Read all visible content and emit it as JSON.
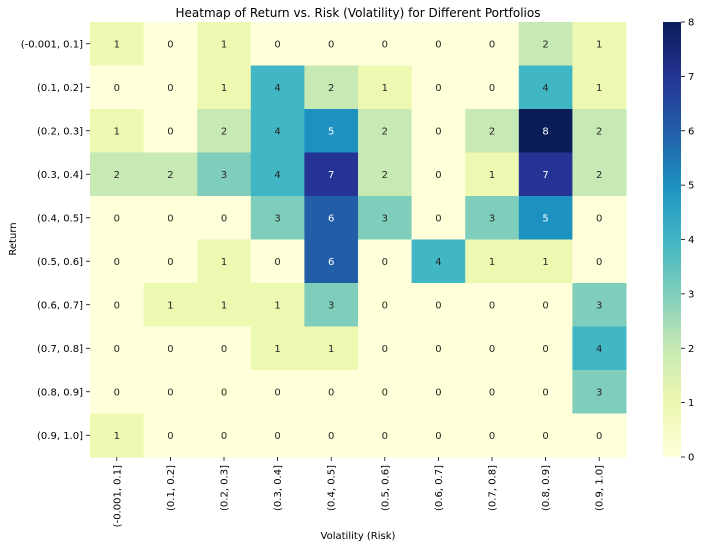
{
  "chart_data": {
    "type": "heatmap",
    "title": "Heatmap of Return vs. Risk (Volatility) for Different Portfolios",
    "xlabel": "Volatility (Risk)",
    "ylabel": "Return",
    "x_categories": [
      "(-0.001, 0.1]",
      "(0.1, 0.2]",
      "(0.2, 0.3]",
      "(0.3, 0.4]",
      "(0.4, 0.5]",
      "(0.5, 0.6]",
      "(0.6, 0.7]",
      "(0.7, 0.8]",
      "(0.8, 0.9]",
      "(0.9, 1.0]"
    ],
    "y_categories": [
      "(-0.001, 0.1]",
      "(0.1, 0.2]",
      "(0.2, 0.3]",
      "(0.3, 0.4]",
      "(0.4, 0.5]",
      "(0.5, 0.6]",
      "(0.6, 0.7]",
      "(0.7, 0.8]",
      "(0.8, 0.9]",
      "(0.9, 1.0]"
    ],
    "values": [
      [
        1,
        0,
        1,
        0,
        0,
        0,
        0,
        0,
        2,
        1
      ],
      [
        0,
        0,
        1,
        4,
        2,
        1,
        0,
        0,
        4,
        1
      ],
      [
        1,
        0,
        2,
        4,
        5,
        2,
        0,
        2,
        8,
        2
      ],
      [
        2,
        2,
        3,
        4,
        7,
        2,
        0,
        1,
        7,
        2
      ],
      [
        0,
        0,
        0,
        3,
        6,
        3,
        0,
        3,
        5,
        0
      ],
      [
        0,
        0,
        1,
        0,
        6,
        0,
        4,
        1,
        1,
        0
      ],
      [
        0,
        1,
        1,
        1,
        3,
        0,
        0,
        0,
        0,
        3
      ],
      [
        0,
        0,
        0,
        1,
        1,
        0,
        0,
        0,
        0,
        4
      ],
      [
        0,
        0,
        0,
        0,
        0,
        0,
        0,
        0,
        0,
        3
      ],
      [
        1,
        0,
        0,
        0,
        0,
        0,
        0,
        0,
        0,
        0
      ]
    ],
    "colormap": "YlGnBu",
    "vmin": 0,
    "vmax": 8,
    "colorbar_ticks": [
      "0",
      "1",
      "2",
      "3",
      "4",
      "5",
      "6",
      "7",
      "8"
    ]
  }
}
